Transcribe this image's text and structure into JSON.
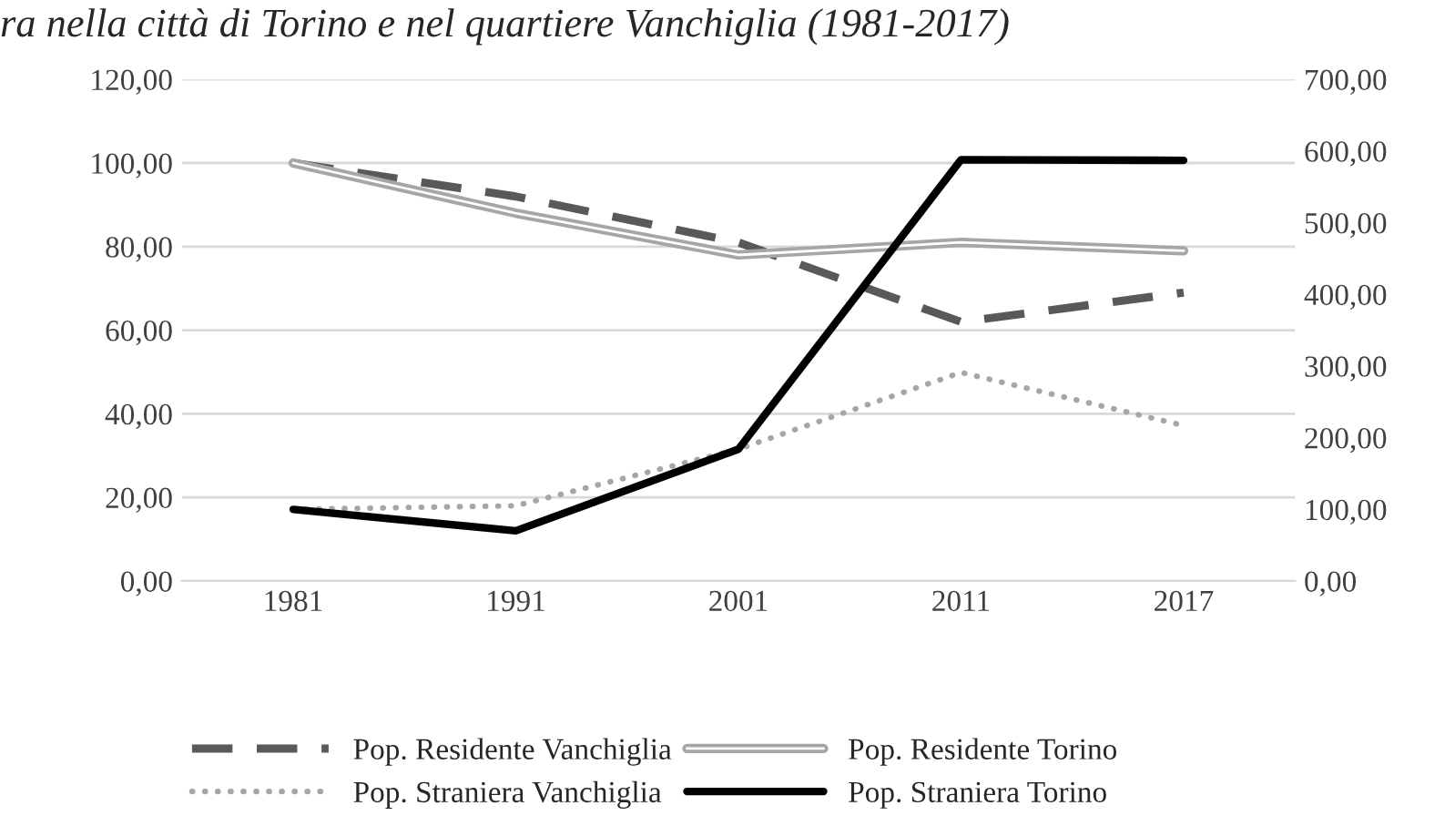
{
  "chart_data": {
    "type": "line",
    "title": "ra nella città di Torino e nel quartiere Vanchiglia (1981-2017)",
    "categories": [
      "1981",
      "1991",
      "2001",
      "2011",
      "2017"
    ],
    "series": [
      {
        "name": "Pop. Residente Vanchiglia",
        "color": "#595959",
        "line_style": "dashed",
        "values": [
          100,
          92,
          81,
          62,
          69
        ]
      },
      {
        "name": "Pop. Residente Torino",
        "color": "#a6a6a6",
        "line_style": "solid",
        "values": [
          100,
          88,
          78,
          81,
          79
        ]
      },
      {
        "name": "Pop. Straniera Vanchiglia",
        "color": "#a6a6a6",
        "line_style": "dotted",
        "axis": "y2",
        "values": [
          100,
          105,
          184,
          291,
          217
        ]
      },
      {
        "name": "Pop. Straniera Torino",
        "color": "#000000",
        "line_style": "solid",
        "axis": "y2",
        "values": [
          100,
          70,
          184,
          588,
          587
        ]
      }
    ],
    "ylim": [
      0,
      120
    ],
    "yticks": [
      {
        "value": 0,
        "label": "0,00"
      },
      {
        "value": 20,
        "label": "20,00"
      },
      {
        "value": 40,
        "label": "40,00"
      },
      {
        "value": 60,
        "label": "60,00"
      },
      {
        "value": 80,
        "label": "80,00"
      },
      {
        "value": 100,
        "label": "100,00"
      },
      {
        "value": 120,
        "label": "120,00"
      }
    ],
    "y2lim": [
      0,
      700
    ],
    "y2ticks": [
      {
        "value": 0,
        "label": "0,00"
      },
      {
        "value": 100,
        "label": "100,00"
      },
      {
        "value": 200,
        "label": "200,00"
      },
      {
        "value": 300,
        "label": "300,00"
      },
      {
        "value": 400,
        "label": "400,00"
      },
      {
        "value": 500,
        "label": "500,00"
      },
      {
        "value": 600,
        "label": "600,00"
      },
      {
        "value": 700,
        "label": "700,00"
      }
    ],
    "grid": "y",
    "legend": "bottom",
    "marker": "none"
  }
}
